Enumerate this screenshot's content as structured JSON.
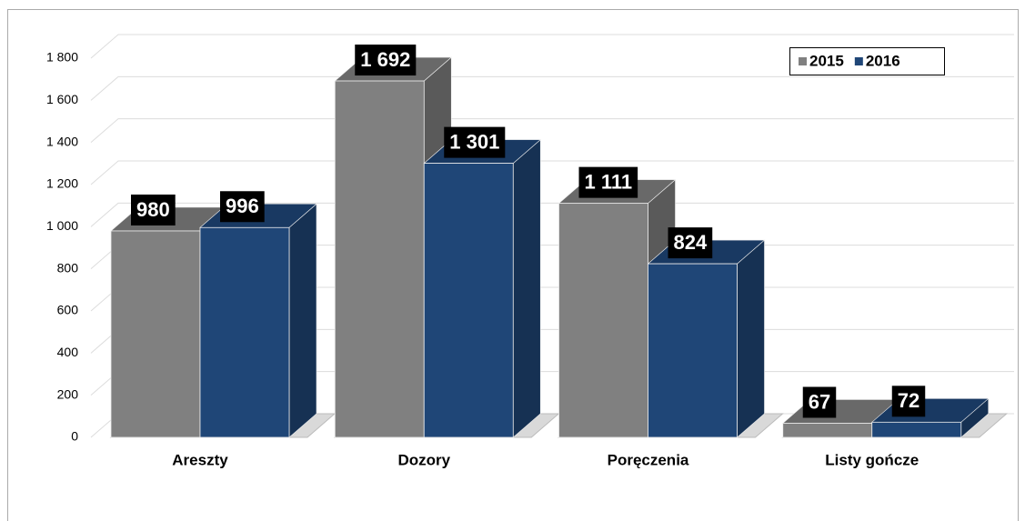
{
  "chart_data": {
    "type": "bar3d",
    "categories": [
      "Areszty",
      "Dozory",
      "Poręczenia",
      "Listy gończe"
    ],
    "series": [
      {
        "name": "2015",
        "color": "#808080",
        "values": [
          980,
          1692,
          1111,
          67
        ],
        "value_labels": [
          "980",
          "1 692",
          "1 111",
          "67"
        ]
      },
      {
        "name": "2016",
        "color": "#1f4677",
        "values": [
          996,
          1301,
          824,
          72
        ],
        "value_labels": [
          "996",
          "1 301",
          "824",
          "72"
        ]
      }
    ],
    "ylim": [
      0,
      1800
    ],
    "yticks": [
      0,
      200,
      400,
      600,
      800,
      {
        "value": 1000,
        "label": "1 000"
      },
      {
        "value": 1200,
        "label": "1 200"
      },
      {
        "value": 1400,
        "label": "1 400"
      },
      {
        "value": 1600,
        "label": "1 600"
      },
      {
        "value": 1800,
        "label": "1 800"
      }
    ],
    "grid": true,
    "legend": "top-right"
  }
}
